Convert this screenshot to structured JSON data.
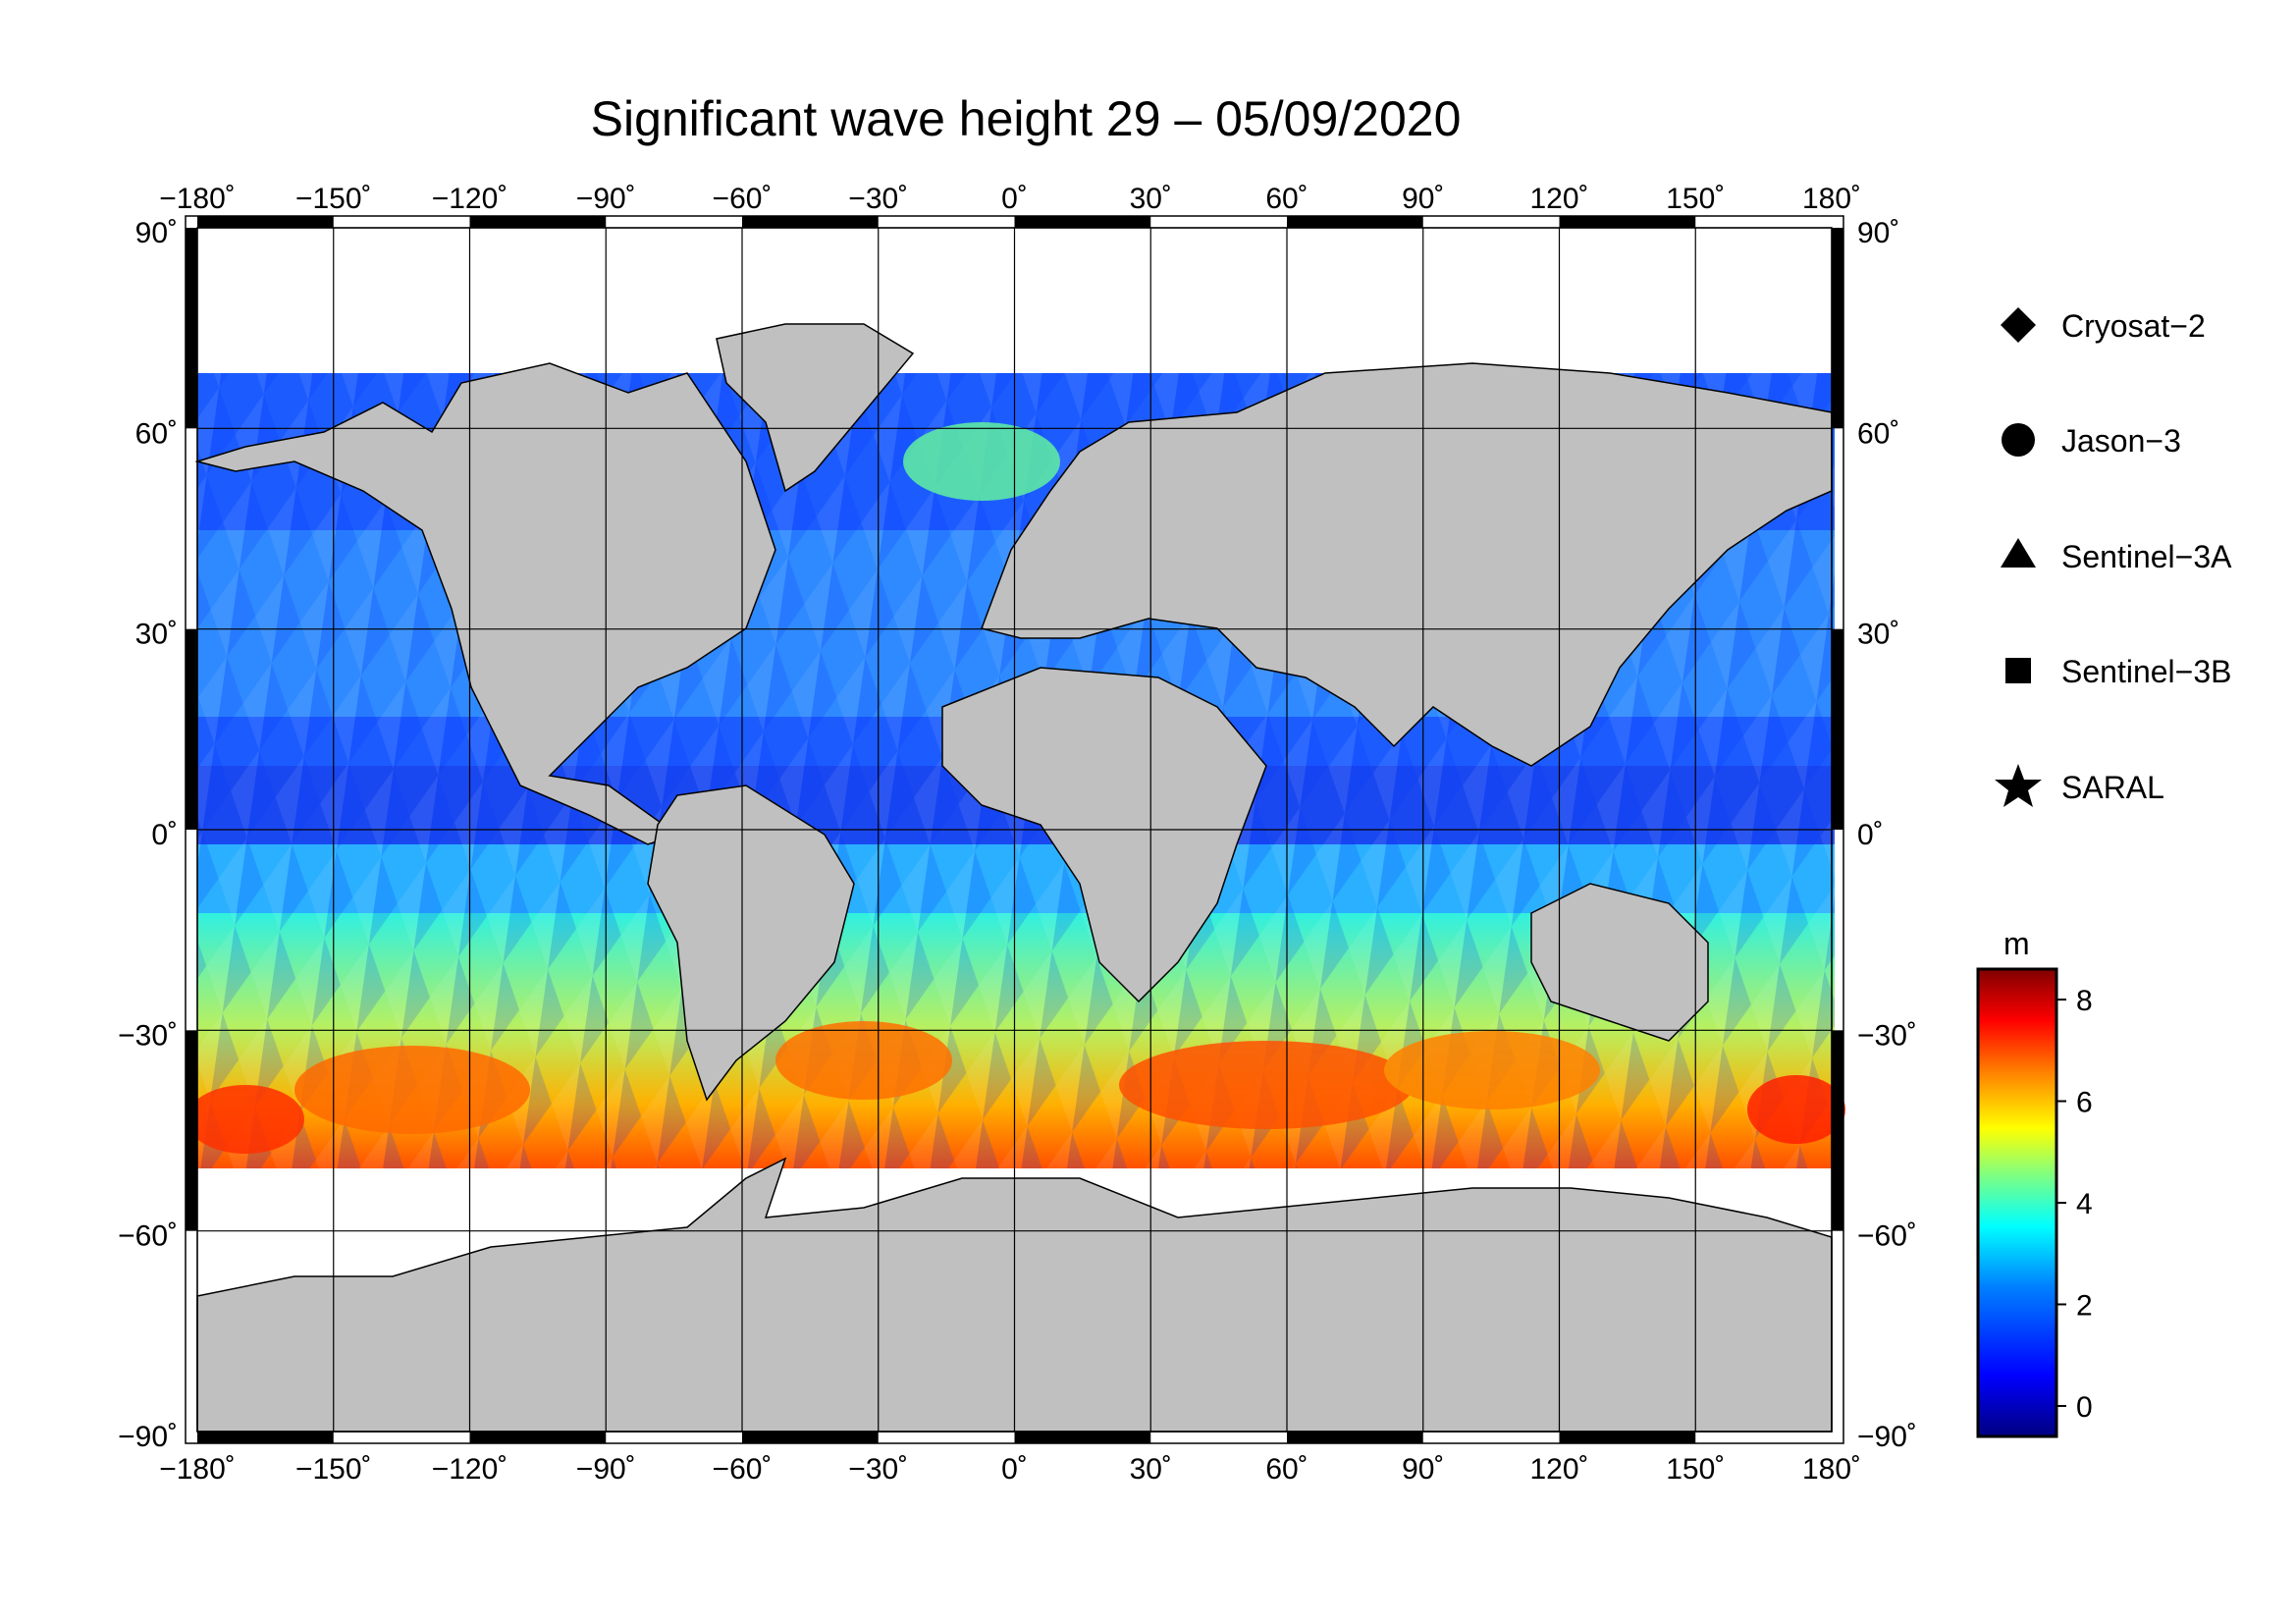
{
  "title": "Significant wave height 29 – 05/09/2020",
  "colors": {
    "land": "#c0c0c0",
    "ice": "#ffffff",
    "frame": "#000000",
    "colormap": [
      "#000080",
      "#0000ff",
      "#0080ff",
      "#00ffff",
      "#80ff80",
      "#ffff00",
      "#ff8000",
      "#ff0000",
      "#800000"
    ]
  },
  "map": {
    "projection": "equirectangular",
    "lon_range": [
      -180,
      180
    ],
    "lat_range": [
      -90,
      90
    ],
    "grid": true,
    "lon_ticks": [
      "−180˚",
      "−150˚",
      "−120˚",
      "−90˚",
      "−60˚",
      "−30˚",
      "0˚",
      "30˚",
      "60˚",
      "90˚",
      "120˚",
      "150˚",
      "180˚"
    ],
    "lat_ticks": [
      "90˚",
      "60˚",
      "30˚",
      "0˚",
      "−30˚",
      "−60˚",
      "−90˚"
    ],
    "lat_tick_values": [
      90,
      60,
      30,
      0,
      -30,
      -60,
      -90
    ],
    "lon_tick_values": [
      -180,
      -150,
      -120,
      -90,
      -60,
      -30,
      0,
      30,
      60,
      90,
      120,
      150,
      180
    ]
  },
  "legend": {
    "items": [
      {
        "label": "Cryosat−2",
        "symbol": "diamond"
      },
      {
        "label": "Jason−3",
        "symbol": "circle"
      },
      {
        "label": "Sentinel−3A",
        "symbol": "triangle"
      },
      {
        "label": "Sentinel−3B",
        "symbol": "square"
      },
      {
        "label": "SARAL",
        "symbol": "star"
      }
    ]
  },
  "colorbar": {
    "unit": "m",
    "ticks": [
      "8",
      "6",
      "4",
      "2",
      "0"
    ],
    "tick_values": [
      8,
      6,
      4,
      2,
      0
    ],
    "range": [
      -0.6,
      8.6
    ]
  }
}
